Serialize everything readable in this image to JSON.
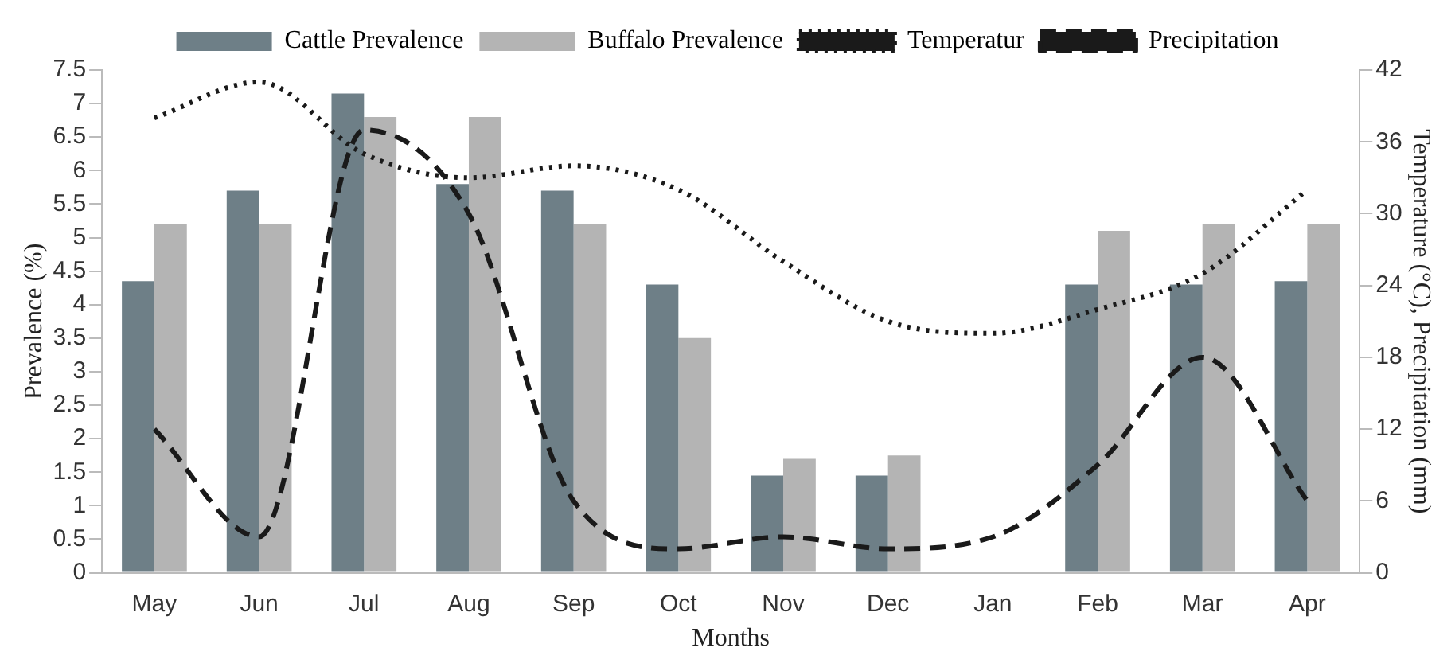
{
  "chart_data": {
    "type": "bar",
    "xlabel": "Months",
    "ylabel": "Prevalence (%)",
    "y2label": "Temperature (°C), Precipitation (mm)",
    "categories": [
      "May",
      "Jun",
      "Jul",
      "Aug",
      "Sep",
      "Oct",
      "Nov",
      "Dec",
      "Jan",
      "Feb",
      "Mar",
      "Apr"
    ],
    "series": [
      {
        "name": "Cattle Prevalence",
        "color": "#6e7f87",
        "values": [
          4.35,
          5.7,
          7.15,
          5.8,
          5.7,
          4.3,
          1.45,
          1.45,
          null,
          4.3,
          4.3,
          4.35
        ]
      },
      {
        "name": "Buffalo Prevalence",
        "color": "#b4b4b4",
        "values": [
          5.2,
          5.2,
          6.8,
          6.8,
          5.2,
          3.5,
          1.7,
          1.75,
          null,
          5.1,
          5.2,
          5.2
        ]
      },
      {
        "name": "Temperatur",
        "type": "line",
        "axis": "y2",
        "color": "#1a1a1a",
        "line_style": "dotted",
        "values": [
          38,
          41,
          35,
          33,
          34,
          32,
          26,
          21,
          20,
          22,
          25,
          32
        ]
      },
      {
        "name": "Precipitation",
        "type": "line",
        "axis": "y2",
        "color": "#1a1a1a",
        "line_style": "dashed",
        "values": [
          12,
          3,
          37,
          30,
          6,
          2,
          3,
          2,
          3,
          9,
          18,
          6
        ]
      }
    ],
    "ylim": [
      0,
      7.5
    ],
    "yticks": [
      0,
      0.5,
      1,
      1.5,
      2,
      2.5,
      3,
      3.5,
      4,
      4.5,
      5,
      5.5,
      6,
      6.5,
      7,
      7.5
    ],
    "y2lim": [
      0,
      42
    ],
    "y2ticks": [
      0,
      6,
      12,
      18,
      24,
      30,
      36,
      42
    ],
    "grid": false,
    "legend": "top",
    "marker": "none"
  }
}
